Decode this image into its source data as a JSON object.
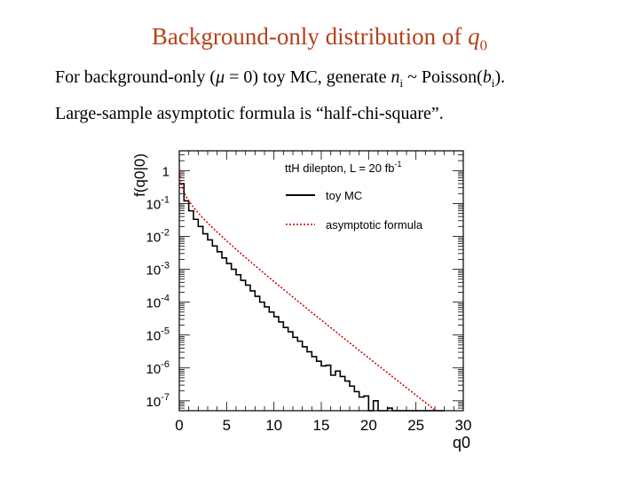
{
  "title": {
    "text": "Background-only distribution of ",
    "var": "q",
    "sub": "0"
  },
  "bullets": [
    {
      "p1": "For background-only (",
      "mu": "μ",
      "p2": " = 0) toy MC, generate ",
      "n": "n",
      "nsub": "i",
      "p3": " ~ Poisson(",
      "b": "b",
      "bsub": "i",
      "p4": ")."
    },
    {
      "text": "Large-sample asymptotic formula is “half-chi-square”."
    }
  ],
  "chart_data": {
    "type": "line",
    "annotation": {
      "text": "ttH dilepton, L = 20 fb",
      "sup": "-1"
    },
    "ylabel": "f(q0|0)",
    "xlabel": "q0",
    "xlim": [
      0,
      30
    ],
    "ylim": [
      5e-08,
      4
    ],
    "yscale": "log",
    "x_ticks": [
      0,
      5,
      10,
      15,
      20,
      25,
      30
    ],
    "y_ticks": [
      {
        "base": "1",
        "exp": "",
        "value": 1
      },
      {
        "base": "10",
        "exp": "-1",
        "value": 0.1
      },
      {
        "base": "10",
        "exp": "-2",
        "value": 0.01
      },
      {
        "base": "10",
        "exp": "-3",
        "value": 0.001
      },
      {
        "base": "10",
        "exp": "-4",
        "value": 0.0001
      },
      {
        "base": "10",
        "exp": "-5",
        "value": 1e-05
      },
      {
        "base": "10",
        "exp": "-6",
        "value": 1e-06
      },
      {
        "base": "10",
        "exp": "-7",
        "value": 1e-07
      }
    ],
    "legend_position": "top-right",
    "series": [
      {
        "name": "toy MC",
        "style": "solid histogram",
        "color": "#000000"
      },
      {
        "name": "asymptotic formula",
        "style": "dotted",
        "color": "#cc0000"
      }
    ],
    "toy_mc": {
      "x": [
        0.25,
        0.75,
        1.25,
        1.75,
        2.25,
        2.75,
        3.25,
        3.75,
        4.25,
        4.75,
        5.25,
        5.75,
        6.25,
        6.75,
        7.25,
        7.75,
        8.25,
        8.75,
        9.25,
        9.75,
        10.25,
        10.75,
        11.25,
        11.75,
        12.25,
        12.75,
        13.25,
        13.75,
        14.25,
        14.75,
        15.25,
        15.75,
        16.25,
        16.75,
        17.25,
        17.75,
        18.25,
        18.75,
        19.25,
        19.75,
        20.25,
        20.75,
        21.25,
        21.75,
        22.25,
        22.75,
        23.25,
        23.75,
        24.25,
        24.75,
        25.25,
        25.75,
        26.25,
        26.75,
        27.25,
        27.75
      ],
      "y": [
        0.4,
        0.12,
        0.06,
        0.033,
        0.02,
        0.012,
        0.0078,
        0.0051,
        0.0034,
        0.0022,
        0.0015,
        0.001,
        0.00068,
        0.00046,
        0.00033,
        0.00022,
        0.00015,
        0.0001,
        7.2e-05,
        5e-05,
        3.6e-05,
        2.5e-05,
        1.7e-05,
        1.25e-05,
        8.5e-06,
        6.5e-06,
        4.4e-06,
        3.1e-06,
        2.2e-06,
        1.6e-06,
        1.15e-06,
        1.2e-06,
        6e-07,
        8e-07,
        5.5e-07,
        4e-07,
        2.8e-07,
        1.9e-07,
        1.3e-07,
        1.4e-07,
        5e-08,
        1e-07,
        5e-08,
        4e-08,
        6e-08,
        2e-08,
        5e-08,
        0,
        0,
        0,
        0,
        0,
        5e-08,
        0,
        0,
        0
      ]
    }
  }
}
